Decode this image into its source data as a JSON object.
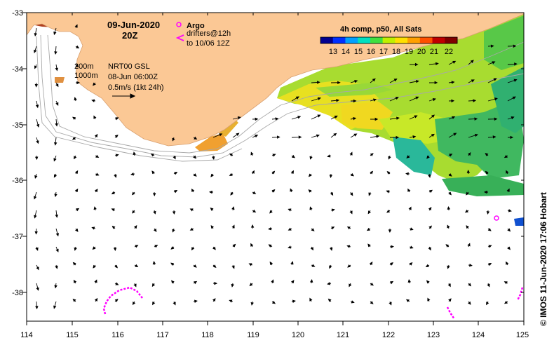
{
  "map": {
    "date_title": "09-Jun-2020",
    "time_title": "20Z",
    "depth_labels": [
      "200m",
      "1000m"
    ],
    "current_source": "NRT00 GSL",
    "current_time": "08-Jun 06:00Z",
    "scale_label": "0.5m/s (1kt 24h)",
    "legend": {
      "argo_label": "Argo",
      "drifters_label": "drifters@12h",
      "drifters_period": "to 10/06 12Z"
    },
    "colorbar": {
      "title": "4h comp, p50, All Sats",
      "ticks": [
        "13",
        "14",
        "15",
        "16",
        "17",
        "18",
        "19",
        "20",
        "21",
        "22"
      ],
      "colors": [
        "#000090",
        "#0030ff",
        "#00a0ff",
        "#00e0c0",
        "#40e040",
        "#c0f000",
        "#ffe000",
        "#ffa000",
        "#ff5000",
        "#c00000",
        "#800000"
      ]
    },
    "lon_ticks": [
      "114",
      "115",
      "116",
      "117",
      "118",
      "119",
      "120",
      "121",
      "122",
      "123",
      "124",
      "125"
    ],
    "lat_ticks": [
      "-33",
      "-34",
      "-35",
      "-36",
      "-37",
      "-38"
    ],
    "credit": "© IMOS 11-Jun-2020 17:06 Hobart",
    "land_color": "#fbc895",
    "drifter_color": "#ff00ff"
  }
}
